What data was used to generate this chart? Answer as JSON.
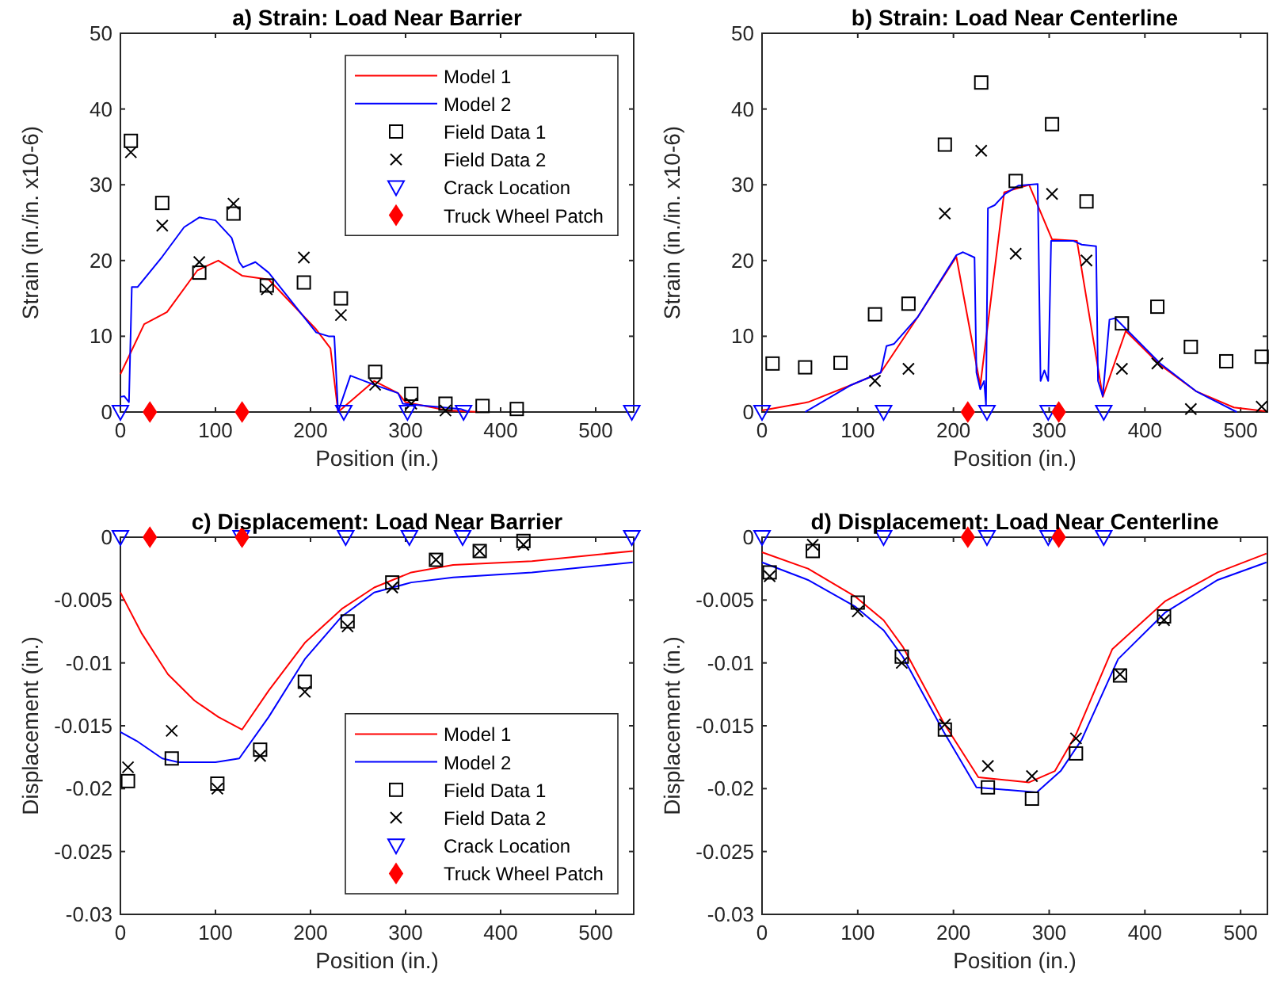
{
  "chart_data": [
    {
      "type": "line",
      "title": "a) Strain: Load Near Barrier",
      "xlabel": "Position (in.)",
      "ylabel": "Strain (in./in. x10-6)",
      "xlim": [
        0,
        540
      ],
      "xticks": [
        0,
        100,
        200,
        300,
        400,
        500
      ],
      "ylim": [
        0,
        50
      ],
      "yticks": [
        0,
        10,
        20,
        30,
        40,
        50
      ],
      "legend": "top right",
      "series": [
        {
          "name": "Model 1",
          "type": "line",
          "marker": "none",
          "color": "#ff0000",
          "x": [
            0,
            25,
            49,
            81,
            103,
            128,
            156,
            206,
            221,
            229,
            267,
            292,
            300,
            344,
            378
          ],
          "values": [
            5.0,
            11.6,
            13.2,
            18.7,
            20.0,
            18.0,
            17.5,
            10.9,
            8.4,
            0,
            4.1,
            2.5,
            1.3,
            0.2,
            0
          ]
        },
        {
          "name": "Model 2",
          "type": "line",
          "marker": "none",
          "color": "#0000ff",
          "x": [
            0,
            4,
            9,
            12,
            18,
            44,
            67,
            83,
            100,
            117,
            125,
            129,
            142,
            156,
            206,
            219,
            225,
            229,
            242,
            267,
            292,
            294,
            297,
            322,
            358,
            367
          ],
          "values": [
            2.0,
            2.1,
            1.3,
            16.5,
            16.5,
            20.5,
            24.4,
            25.7,
            25.3,
            23.0,
            19.8,
            19.1,
            19.8,
            18.4,
            10.5,
            10.0,
            10.0,
            0,
            4.8,
            3.6,
            2.5,
            2.0,
            1.1,
            0.8,
            0.4,
            0
          ]
        },
        {
          "name": "Field Data 1",
          "type": "scatter",
          "marker": "square",
          "color": "#000000",
          "x": [
            11,
            44,
            83,
            119,
            154,
            193,
            232,
            268,
            306,
            342,
            381,
            417
          ],
          "values": [
            35.8,
            27.6,
            18.4,
            26.2,
            16.7,
            17.1,
            15.0,
            5.3,
            2.4,
            1.1,
            0.8,
            0.4
          ]
        },
        {
          "name": "Field Data 2",
          "type": "scatter",
          "marker": "cross",
          "color": "#000000",
          "x": [
            11,
            44,
            83,
            119,
            154,
            193,
            232,
            268,
            306,
            342
          ],
          "values": [
            34.3,
            24.6,
            19.8,
            27.5,
            16.2,
            20.4,
            12.8,
            3.6,
            1.1,
            0.2
          ]
        },
        {
          "name": "Crack Location",
          "type": "scatter",
          "marker": "triangle",
          "color": "#0000ff",
          "x": [
            0,
            235,
            302,
            361,
            538
          ],
          "values": [
            0,
            0,
            0,
            0,
            0
          ]
        },
        {
          "name": "Truck Wheel Patch",
          "type": "scatter",
          "marker": "diamond",
          "color": "#ff0000",
          "x": [
            31,
            128
          ],
          "values": [
            0,
            0
          ]
        }
      ]
    },
    {
      "type": "line",
      "title": "b) Strain: Load Near Centerline",
      "xlabel": "Position (in.)",
      "ylabel": "Strain (in./in. x10-6)",
      "xlim": [
        0,
        528
      ],
      "xticks": [
        0,
        100,
        200,
        300,
        400,
        500
      ],
      "ylim": [
        0,
        50
      ],
      "yticks": [
        0,
        10,
        20,
        30,
        40,
        50
      ],
      "legend": false,
      "series": [
        {
          "type": "line",
          "marker": "none",
          "color": "#ff0000",
          "x": [
            0,
            48,
            92,
            124,
            163,
            203,
            228,
            253,
            279,
            303,
            329,
            356,
            380,
            416,
            454,
            493,
            526
          ],
          "values": [
            0.2,
            1.3,
            3.5,
            5.2,
            12.6,
            20.5,
            3.5,
            29.0,
            30.0,
            22.8,
            22.6,
            2.0,
            10.7,
            6.2,
            2.7,
            0.6,
            0.1
          ]
        },
        {
          "type": "line",
          "marker": "none",
          "color": "#0000ff",
          "x": [
            45,
            92,
            124,
            130,
            138,
            163,
            203,
            210,
            222,
            224,
            228,
            232,
            234,
            236,
            243,
            254,
            268,
            288,
            291,
            295,
            299,
            302,
            325,
            334,
            349,
            351,
            356,
            363,
            369,
            416,
            454,
            496
          ],
          "values": [
            0,
            3.5,
            5.2,
            8.7,
            9.0,
            12.6,
            20.7,
            21.1,
            20.4,
            5.2,
            3.0,
            4.1,
            0.9,
            26.9,
            27.3,
            28.8,
            29.9,
            30.1,
            4.1,
            5.5,
            4.1,
            22.6,
            22.6,
            22.1,
            21.9,
            4.1,
            2.1,
            12.2,
            12.4,
            6.4,
            2.7,
            0
          ]
        },
        {
          "type": "scatter",
          "marker": "square",
          "color": "#000000",
          "x": [
            11,
            45,
            82,
            118,
            153,
            191,
            229,
            265,
            303,
            339,
            376,
            413,
            448,
            485,
            522
          ],
          "values": [
            6.4,
            5.9,
            6.5,
            12.9,
            14.3,
            35.3,
            43.5,
            30.5,
            38.0,
            27.8,
            11.7,
            13.9,
            8.6,
            6.7,
            7.3
          ]
        },
        {
          "type": "scatter",
          "marker": "cross",
          "color": "#000000",
          "x": [
            118,
            153,
            191,
            229,
            265,
            303,
            339,
            376,
            413,
            448,
            522
          ],
          "values": [
            4.1,
            5.7,
            26.2,
            34.5,
            20.9,
            28.8,
            20.0,
            5.7,
            6.4,
            0.4,
            0.7
          ]
        },
        {
          "type": "scatter",
          "marker": "triangle",
          "color": "#0000ff",
          "x": [
            0,
            127,
            235,
            299,
            357
          ],
          "values": [
            0,
            0,
            0,
            0,
            0
          ]
        },
        {
          "type": "scatter",
          "marker": "diamond",
          "color": "#ff0000",
          "x": [
            215,
            310
          ],
          "values": [
            0,
            0
          ]
        }
      ]
    },
    {
      "type": "line",
      "title": "c) Displacement: Load Near Barrier",
      "xlabel": "Position (in.)",
      "ylabel": "Displacement (in.)",
      "xlim": [
        0,
        540
      ],
      "xticks": [
        0,
        100,
        200,
        300,
        400,
        500
      ],
      "ylim": [
        -0.03,
        0
      ],
      "yticks": [
        -0.03,
        -0.025,
        -0.02,
        -0.015,
        -0.01,
        -0.005,
        0
      ],
      "legend": "bottom right",
      "series": [
        {
          "name": "Model 1",
          "type": "line",
          "marker": "none",
          "color": "#ff0000",
          "x": [
            0,
            22,
            50,
            78,
            103,
            128,
            156,
            194,
            233,
            267,
            306,
            350,
            433,
            539
          ],
          "values": [
            -0.0044,
            -0.0076,
            -0.0109,
            -0.013,
            -0.0143,
            -0.0153,
            -0.0122,
            -0.0084,
            -0.0057,
            -0.004,
            -0.0028,
            -0.0022,
            -0.0019,
            -0.0011
          ]
        },
        {
          "name": "Model 2",
          "type": "line",
          "marker": "none",
          "color": "#0000ff",
          "x": [
            0,
            17,
            44,
            61,
            100,
            125,
            156,
            194,
            233,
            267,
            306,
            350,
            433,
            539
          ],
          "values": [
            -0.0155,
            -0.0162,
            -0.0176,
            -0.0179,
            -0.0179,
            -0.0176,
            -0.0143,
            -0.0097,
            -0.0063,
            -0.0044,
            -0.0036,
            -0.0032,
            -0.0028,
            -0.002
          ]
        },
        {
          "name": "Field Data 1",
          "type": "scatter",
          "marker": "square",
          "color": "#000000",
          "x": [
            8,
            54,
            102,
            147,
            194,
            239,
            286,
            332,
            378,
            424
          ],
          "values": [
            -0.0194,
            -0.0176,
            -0.0196,
            -0.0169,
            -0.0115,
            -0.0067,
            -0.0036,
            -0.0018,
            -0.0011,
            -0.0003
          ]
        },
        {
          "name": "Field Data 2",
          "type": "scatter",
          "marker": "cross",
          "color": "#000000",
          "x": [
            8,
            54,
            102,
            147,
            194,
            239,
            286,
            332,
            378,
            424
          ],
          "values": [
            -0.0183,
            -0.0154,
            -0.02,
            -0.0174,
            -0.0123,
            -0.0071,
            -0.004,
            -0.0018,
            -0.0011,
            -0.0006
          ]
        },
        {
          "name": "Crack Location",
          "type": "scatter",
          "marker": "triangle",
          "color": "#0000ff",
          "x": [
            0,
            127,
            237,
            304,
            360,
            538
          ],
          "values": [
            0,
            0,
            0,
            0,
            0,
            0
          ]
        },
        {
          "name": "Truck Wheel Patch",
          "type": "scatter",
          "marker": "diamond",
          "color": "#ff0000",
          "x": [
            31,
            128
          ],
          "values": [
            0,
            0
          ]
        }
      ]
    },
    {
      "type": "line",
      "title": "d) Displacement: Load Near Centerline",
      "xlabel": "Position (in.)",
      "ylabel": "Displacement (in.)",
      "xlim": [
        0,
        528
      ],
      "xticks": [
        0,
        100,
        200,
        300,
        400,
        500
      ],
      "ylim": [
        -0.03,
        0
      ],
      "yticks": [
        -0.03,
        -0.025,
        -0.02,
        -0.015,
        -0.01,
        -0.005,
        0
      ],
      "legend": false,
      "series": [
        {
          "type": "line",
          "marker": "none",
          "color": "#ff0000",
          "x": [
            0,
            48,
            97,
            127,
            147,
            190,
            226,
            279,
            306,
            328,
            366,
            421,
            476,
            527
          ],
          "values": [
            -0.0012,
            -0.0025,
            -0.0047,
            -0.0066,
            -0.0087,
            -0.0148,
            -0.0191,
            -0.0195,
            -0.0186,
            -0.0157,
            -0.0089,
            -0.0051,
            -0.0028,
            -0.0013
          ]
        },
        {
          "type": "line",
          "marker": "none",
          "color": "#0000ff",
          "x": [
            0,
            48,
            97,
            127,
            147,
            190,
            224,
            287,
            312,
            334,
            372,
            421,
            476,
            527
          ],
          "values": [
            -0.002,
            -0.0034,
            -0.0055,
            -0.0074,
            -0.0095,
            -0.0155,
            -0.0199,
            -0.0203,
            -0.0186,
            -0.0161,
            -0.0097,
            -0.006,
            -0.0034,
            -0.002
          ]
        },
        {
          "type": "scatter",
          "marker": "square",
          "color": "#000000",
          "x": [
            8,
            53,
            100,
            146,
            191,
            236,
            282,
            328,
            374,
            420
          ],
          "values": [
            -0.0028,
            -0.0011,
            -0.0052,
            -0.0095,
            -0.0153,
            -0.0199,
            -0.0208,
            -0.0172,
            -0.011,
            -0.0063
          ]
        },
        {
          "type": "scatter",
          "marker": "cross",
          "color": "#000000",
          "x": [
            8,
            53,
            100,
            146,
            191,
            236,
            282,
            328,
            374,
            420
          ],
          "values": [
            -0.0031,
            -0.0006,
            -0.0059,
            -0.01,
            -0.0149,
            -0.0182,
            -0.019,
            -0.016,
            -0.0109,
            -0.0066
          ]
        },
        {
          "type": "scatter",
          "marker": "triangle",
          "color": "#0000ff",
          "x": [
            0,
            127,
            235,
            299,
            357
          ],
          "values": [
            0,
            0,
            0,
            0,
            0
          ]
        },
        {
          "type": "scatter",
          "marker": "diamond",
          "color": "#ff0000",
          "x": [
            215,
            310
          ],
          "values": [
            0,
            0
          ]
        }
      ]
    }
  ]
}
